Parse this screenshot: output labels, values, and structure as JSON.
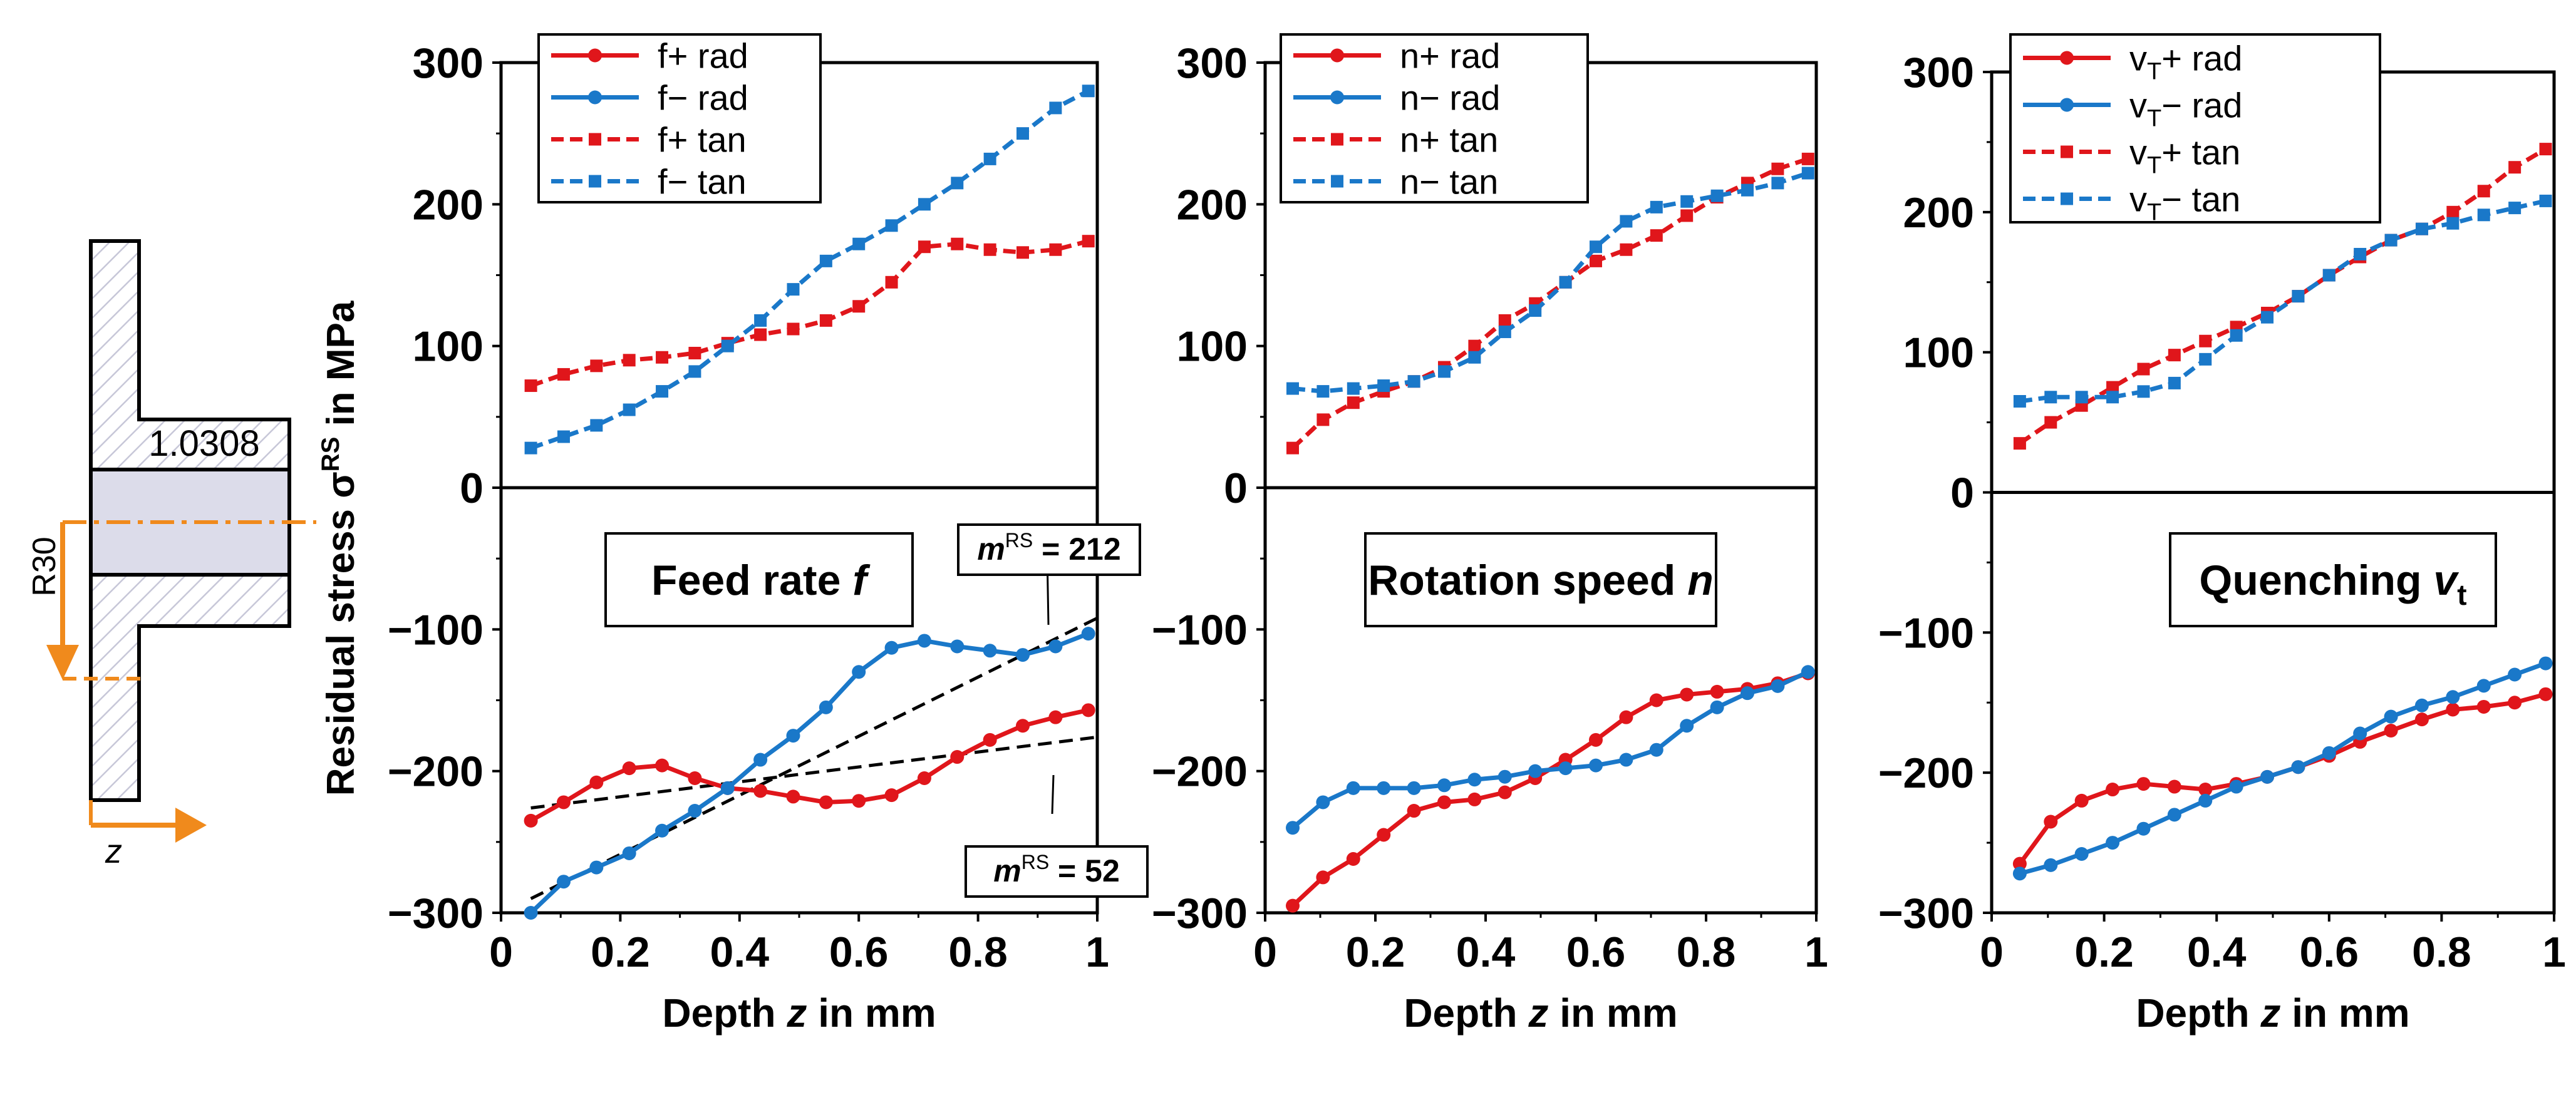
{
  "figure": {
    "y_axis_label": "Residual stress σ",
    "y_axis_label_sup": "RS",
    "y_axis_label_end": " in MPa",
    "x_axis_label_pre": "Depth ",
    "x_axis_label_var": "z",
    "x_axis_label_post": " in mm",
    "colors": {
      "red": "#e0161b",
      "blue": "#1a78c9",
      "orange": "#f08a1c",
      "black": "#000000"
    }
  },
  "schematic": {
    "material": "1.0308",
    "radius_label": "R30",
    "z_label": "z"
  },
  "chart_data": [
    {
      "type": "line",
      "panel": "feed",
      "title": "Feed rate ",
      "title_var": "f",
      "title_sub": "",
      "xlim": [
        0,
        1
      ],
      "ylim": [
        -300,
        300
      ],
      "x_ticks": [
        0,
        0.2,
        0.4,
        0.6,
        0.8,
        1
      ],
      "x_tick_labels": [
        "0",
        "0.2",
        "0.4",
        "0.6",
        "0.8",
        "1"
      ],
      "y_ticks": [
        -300,
        -200,
        -100,
        0,
        100,
        200,
        300
      ],
      "y_tick_labels": [
        "−300",
        "−200",
        "−100",
        "0",
        "100",
        "200",
        "300"
      ],
      "legend": [
        {
          "prefix": "f",
          "sub": "",
          "suffix": "+ rad"
        },
        {
          "prefix": "f",
          "sub": "",
          "suffix": "− rad"
        },
        {
          "prefix": "f",
          "sub": "",
          "suffix": "+ tan"
        },
        {
          "prefix": "f",
          "sub": "",
          "suffix": "− tan"
        }
      ],
      "x": [
        0.05,
        0.105,
        0.16,
        0.215,
        0.27,
        0.325,
        0.38,
        0.435,
        0.49,
        0.545,
        0.6,
        0.655,
        0.71,
        0.765,
        0.82,
        0.875,
        0.93,
        0.985
      ],
      "series": [
        {
          "name": "f+ rad",
          "color": "red",
          "dash": false,
          "marker": "circle",
          "values": [
            -235,
            -222,
            -208,
            -198,
            -196,
            -205,
            -212,
            -214,
            -218,
            -222,
            -221,
            -217,
            -205,
            -190,
            -178,
            -168,
            -162,
            -157
          ]
        },
        {
          "name": "f− rad",
          "color": "blue",
          "dash": false,
          "marker": "circle",
          "values": [
            -300,
            -278,
            -268,
            -258,
            -242,
            -228,
            -212,
            -192,
            -175,
            -155,
            -130,
            -113,
            -108,
            -112,
            -115,
            -118,
            -112,
            -103
          ]
        },
        {
          "name": "f+ tan",
          "color": "red",
          "dash": true,
          "marker": "square",
          "values": [
            72,
            80,
            86,
            90,
            92,
            95,
            102,
            108,
            112,
            118,
            128,
            145,
            170,
            172,
            168,
            166,
            168,
            174
          ]
        },
        {
          "name": "f− tan",
          "color": "blue",
          "dash": true,
          "marker": "square",
          "values": [
            28,
            36,
            44,
            55,
            68,
            82,
            100,
            118,
            140,
            160,
            172,
            185,
            200,
            215,
            232,
            250,
            268,
            280
          ]
        }
      ],
      "trend_lines": [
        {
          "x": [
            0.05,
            1
          ],
          "y": [
            -290,
            -92
          ]
        },
        {
          "x": [
            0.05,
            1
          ],
          "y": [
            -226,
            -176
          ]
        }
      ],
      "annotations": [
        {
          "label": "m",
          "sup": "RS",
          "value": " = 212"
        },
        {
          "label": "m",
          "sup": "RS",
          "value": " = 52"
        }
      ]
    },
    {
      "type": "line",
      "panel": "rotation",
      "title": "Rotation speed ",
      "title_var": "n",
      "title_sub": "",
      "xlim": [
        0,
        1
      ],
      "ylim": [
        -300,
        300
      ],
      "x_ticks": [
        0,
        0.2,
        0.4,
        0.6,
        0.8,
        1
      ],
      "x_tick_labels": [
        "0",
        "0.2",
        "0.4",
        "0.6",
        "0.8",
        "1"
      ],
      "y_ticks": [
        -300,
        -200,
        -100,
        0,
        100,
        200,
        300
      ],
      "y_tick_labels": [
        "−300",
        "−200",
        "−100",
        "0",
        "100",
        "200",
        "300"
      ],
      "legend": [
        {
          "prefix": "n",
          "sub": "",
          "suffix": "+ rad"
        },
        {
          "prefix": "n",
          "sub": "",
          "suffix": "− rad"
        },
        {
          "prefix": "n",
          "sub": "",
          "suffix": "+ tan"
        },
        {
          "prefix": "n",
          "sub": "",
          "suffix": "− tan"
        }
      ],
      "x": [
        0.05,
        0.105,
        0.16,
        0.215,
        0.27,
        0.325,
        0.38,
        0.435,
        0.49,
        0.545,
        0.6,
        0.655,
        0.71,
        0.765,
        0.82,
        0.875,
        0.93,
        0.985
      ],
      "series": [
        {
          "name": "n+ rad",
          "color": "red",
          "dash": false,
          "marker": "circle",
          "values": [
            -295,
            -275,
            -262,
            -245,
            -228,
            -222,
            -220,
            -215,
            -205,
            -192,
            -178,
            -162,
            -150,
            -146,
            -144,
            -142,
            -138,
            -131
          ]
        },
        {
          "name": "n− rad",
          "color": "blue",
          "dash": false,
          "marker": "circle",
          "values": [
            -240,
            -222,
            -212,
            -212,
            -212,
            -210,
            -206,
            -204,
            -200,
            -198,
            -196,
            -192,
            -185,
            -168,
            -155,
            -145,
            -140,
            -130
          ]
        },
        {
          "name": "n+ tan",
          "color": "red",
          "dash": true,
          "marker": "square",
          "values": [
            28,
            48,
            60,
            68,
            75,
            85,
            100,
            118,
            130,
            145,
            160,
            168,
            178,
            192,
            205,
            215,
            225,
            232
          ]
        },
        {
          "name": "n− tan",
          "color": "blue",
          "dash": true,
          "marker": "square",
          "values": [
            70,
            68,
            70,
            72,
            75,
            82,
            92,
            110,
            125,
            145,
            170,
            188,
            198,
            202,
            206,
            210,
            215,
            222
          ]
        }
      ],
      "trend_lines": [],
      "annotations": []
    },
    {
      "type": "line",
      "panel": "quenching",
      "title": "Quenching ",
      "title_var": "v",
      "title_sub": "t",
      "xlim": [
        0,
        1
      ],
      "ylim": [
        -300,
        300
      ],
      "x_ticks": [
        0,
        0.2,
        0.4,
        0.6,
        0.8,
        1
      ],
      "x_tick_labels": [
        "0",
        "0.2",
        "0.4",
        "0.6",
        "0.8",
        "1"
      ],
      "y_ticks": [
        -300,
        -200,
        -100,
        0,
        100,
        200,
        300
      ],
      "y_tick_labels": [
        "−300",
        "−200",
        "−100",
        "0",
        "100",
        "200",
        "300"
      ],
      "legend": [
        {
          "prefix": "v",
          "sub": "T",
          "suffix": "+ rad"
        },
        {
          "prefix": "v",
          "sub": "T",
          "suffix": "− rad"
        },
        {
          "prefix": "v",
          "sub": "T",
          "suffix": "+ tan"
        },
        {
          "prefix": "v",
          "sub": "T",
          "suffix": "− tan"
        }
      ],
      "x": [
        0.05,
        0.105,
        0.16,
        0.215,
        0.27,
        0.325,
        0.38,
        0.435,
        0.49,
        0.545,
        0.6,
        0.655,
        0.71,
        0.765,
        0.82,
        0.875,
        0.93,
        0.985
      ],
      "series": [
        {
          "name": "vT+ rad",
          "color": "red",
          "dash": false,
          "marker": "circle",
          "values": [
            -265,
            -235,
            -220,
            -212,
            -208,
            -210,
            -212,
            -208,
            -203,
            -196,
            -188,
            -178,
            -170,
            -162,
            -155,
            -153,
            -150,
            -144
          ]
        },
        {
          "name": "vT− rad",
          "color": "blue",
          "dash": false,
          "marker": "circle",
          "values": [
            -272,
            -266,
            -258,
            -250,
            -240,
            -230,
            -220,
            -210,
            -203,
            -196,
            -186,
            -172,
            -160,
            -152,
            -146,
            -138,
            -130,
            -122
          ]
        },
        {
          "name": "vT+ tan",
          "color": "red",
          "dash": true,
          "marker": "square",
          "values": [
            35,
            50,
            62,
            75,
            88,
            98,
            108,
            118,
            128,
            140,
            155,
            168,
            180,
            188,
            200,
            215,
            232,
            245
          ]
        },
        {
          "name": "vT− tan",
          "color": "blue",
          "dash": true,
          "marker": "square",
          "values": [
            65,
            68,
            68,
            68,
            72,
            78,
            95,
            112,
            125,
            140,
            155,
            170,
            180,
            188,
            192,
            198,
            203,
            208
          ]
        }
      ],
      "trend_lines": [],
      "annotations": []
    }
  ]
}
